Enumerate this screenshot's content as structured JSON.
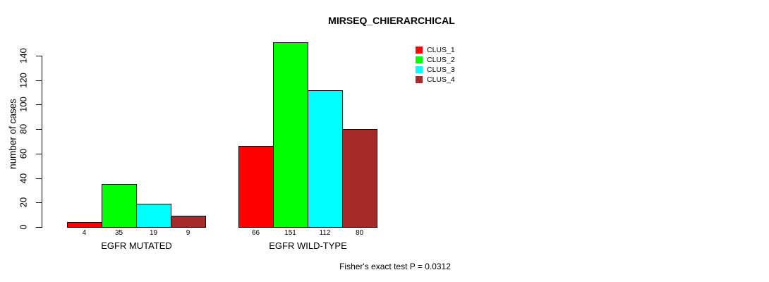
{
  "chart_data": {
    "type": "bar",
    "title": "MIRSEQ_CHIERARCHICAL",
    "ylabel": "number of cases",
    "xlabel": "",
    "ylim": [
      0,
      140
    ],
    "yticks": [
      0,
      20,
      40,
      60,
      80,
      100,
      120,
      140
    ],
    "grid": false,
    "legend_position": "top-right",
    "categories": [
      "EGFR MUTATED",
      "EGFR WILD-TYPE"
    ],
    "series": [
      {
        "name": "CLUS_1",
        "color": "#ff0000",
        "values": [
          4,
          66
        ]
      },
      {
        "name": "CLUS_2",
        "color": "#00ff00",
        "values": [
          35,
          151
        ]
      },
      {
        "name": "CLUS_3",
        "color": "#00ffff",
        "values": [
          19,
          112
        ]
      },
      {
        "name": "CLUS_4",
        "color": "#a52a2a",
        "values": [
          9,
          80
        ]
      }
    ],
    "bar_value_labels": true,
    "annotation": "Fisher's exact test P = 0.0312",
    "axis_color": "#000000",
    "text_color": "#000000",
    "background_color": "#ffffff"
  }
}
